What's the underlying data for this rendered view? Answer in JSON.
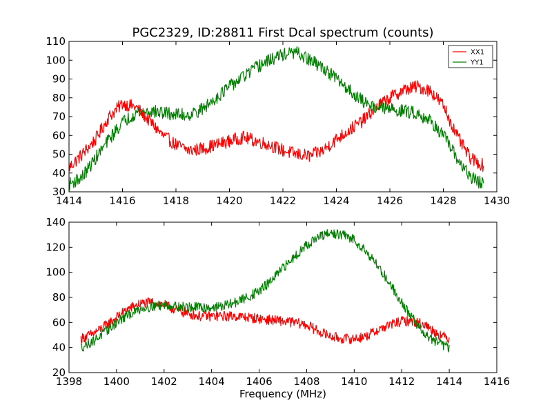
{
  "figure": {
    "title": "PGC2329, ID:28811 First Dcal spectrum (counts)"
  },
  "chart_data": [
    {
      "type": "line",
      "title": "PGC2329, ID:28811 First Dcal spectrum (counts)",
      "xlabel": "",
      "ylabel": "",
      "xlim": [
        1414,
        1430
      ],
      "ylim": [
        30,
        110
      ],
      "xticks": [
        1414,
        1416,
        1418,
        1420,
        1422,
        1424,
        1426,
        1428,
        1430
      ],
      "yticks": [
        30,
        40,
        50,
        60,
        70,
        80,
        90,
        100,
        110
      ],
      "grid": false,
      "legend": "top-right",
      "series": [
        {
          "name": "XX1",
          "color": "#ff0000",
          "x": [
            1414.0,
            1414.5,
            1415.0,
            1415.5,
            1416.0,
            1416.5,
            1417.0,
            1417.5,
            1418.0,
            1418.5,
            1419.0,
            1419.5,
            1420.0,
            1420.5,
            1421.0,
            1421.5,
            1422.0,
            1422.5,
            1423.0,
            1423.5,
            1424.0,
            1424.5,
            1425.0,
            1425.5,
            1426.0,
            1426.5,
            1427.0,
            1427.5,
            1428.0,
            1428.5,
            1429.0,
            1429.5
          ],
          "y": [
            43,
            50,
            58,
            70,
            77,
            75,
            68,
            60,
            55,
            52,
            53,
            55,
            57,
            59,
            57,
            55,
            52,
            50,
            49,
            52,
            58,
            63,
            68,
            75,
            80,
            84,
            86,
            84,
            76,
            60,
            48,
            44
          ]
        },
        {
          "name": "YY1",
          "color": "#007f00",
          "x": [
            1414.0,
            1414.5,
            1415.0,
            1415.5,
            1416.0,
            1416.5,
            1417.0,
            1417.5,
            1418.0,
            1418.5,
            1419.0,
            1419.5,
            1420.0,
            1420.5,
            1421.0,
            1421.5,
            1422.0,
            1422.5,
            1423.0,
            1423.5,
            1424.0,
            1424.5,
            1425.0,
            1425.5,
            1426.0,
            1426.5,
            1427.0,
            1427.5,
            1428.0,
            1428.5,
            1429.0,
            1429.5
          ],
          "y": [
            34,
            38,
            48,
            58,
            67,
            72,
            73,
            72,
            71,
            71,
            74,
            80,
            86,
            91,
            96,
            100,
            103,
            104,
            100,
            96,
            90,
            84,
            78,
            75,
            74,
            73,
            72,
            68,
            60,
            48,
            38,
            34
          ]
        }
      ]
    },
    {
      "type": "line",
      "title": "",
      "xlabel": "Frequency (MHz)",
      "ylabel": "",
      "xlim": [
        1398,
        1416
      ],
      "ylim": [
        20,
        140
      ],
      "xticks": [
        1398,
        1400,
        1402,
        1404,
        1406,
        1408,
        1410,
        1412,
        1414,
        1416
      ],
      "yticks": [
        20,
        40,
        60,
        80,
        100,
        120,
        140
      ],
      "grid": false,
      "legend": "none",
      "series": [
        {
          "color": "#ff0000",
          "x": [
            1398.5,
            1399.0,
            1399.5,
            1400.0,
            1400.5,
            1401.0,
            1401.5,
            1402.0,
            1402.5,
            1403.0,
            1403.5,
            1404.0,
            1404.5,
            1405.0,
            1405.5,
            1406.0,
            1406.5,
            1407.0,
            1407.5,
            1408.0,
            1408.5,
            1409.0,
            1409.5,
            1410.0,
            1410.5,
            1411.0,
            1411.5,
            1412.0,
            1412.5,
            1413.0,
            1413.5,
            1414.0
          ],
          "y": [
            47,
            51,
            57,
            64,
            71,
            75,
            76,
            74,
            70,
            67,
            65,
            65,
            65,
            65,
            64,
            63,
            62,
            61,
            60,
            58,
            53,
            49,
            47,
            47,
            49,
            54,
            58,
            61,
            61,
            58,
            51,
            47
          ]
        },
        {
          "color": "#007f00",
          "x": [
            1398.5,
            1399.0,
            1399.5,
            1400.0,
            1400.5,
            1401.0,
            1401.5,
            1402.0,
            1402.5,
            1403.0,
            1403.5,
            1404.0,
            1404.5,
            1405.0,
            1405.5,
            1406.0,
            1406.5,
            1407.0,
            1407.5,
            1408.0,
            1408.5,
            1409.0,
            1409.5,
            1410.0,
            1410.5,
            1411.0,
            1411.5,
            1412.0,
            1412.5,
            1413.0,
            1413.5,
            1414.0
          ],
          "y": [
            40,
            45,
            52,
            60,
            66,
            71,
            73,
            74,
            73,
            72,
            72,
            72,
            73,
            76,
            80,
            85,
            93,
            103,
            113,
            122,
            128,
            131,
            130,
            126,
            117,
            105,
            91,
            76,
            62,
            50,
            44,
            40
          ]
        }
      ]
    }
  ]
}
